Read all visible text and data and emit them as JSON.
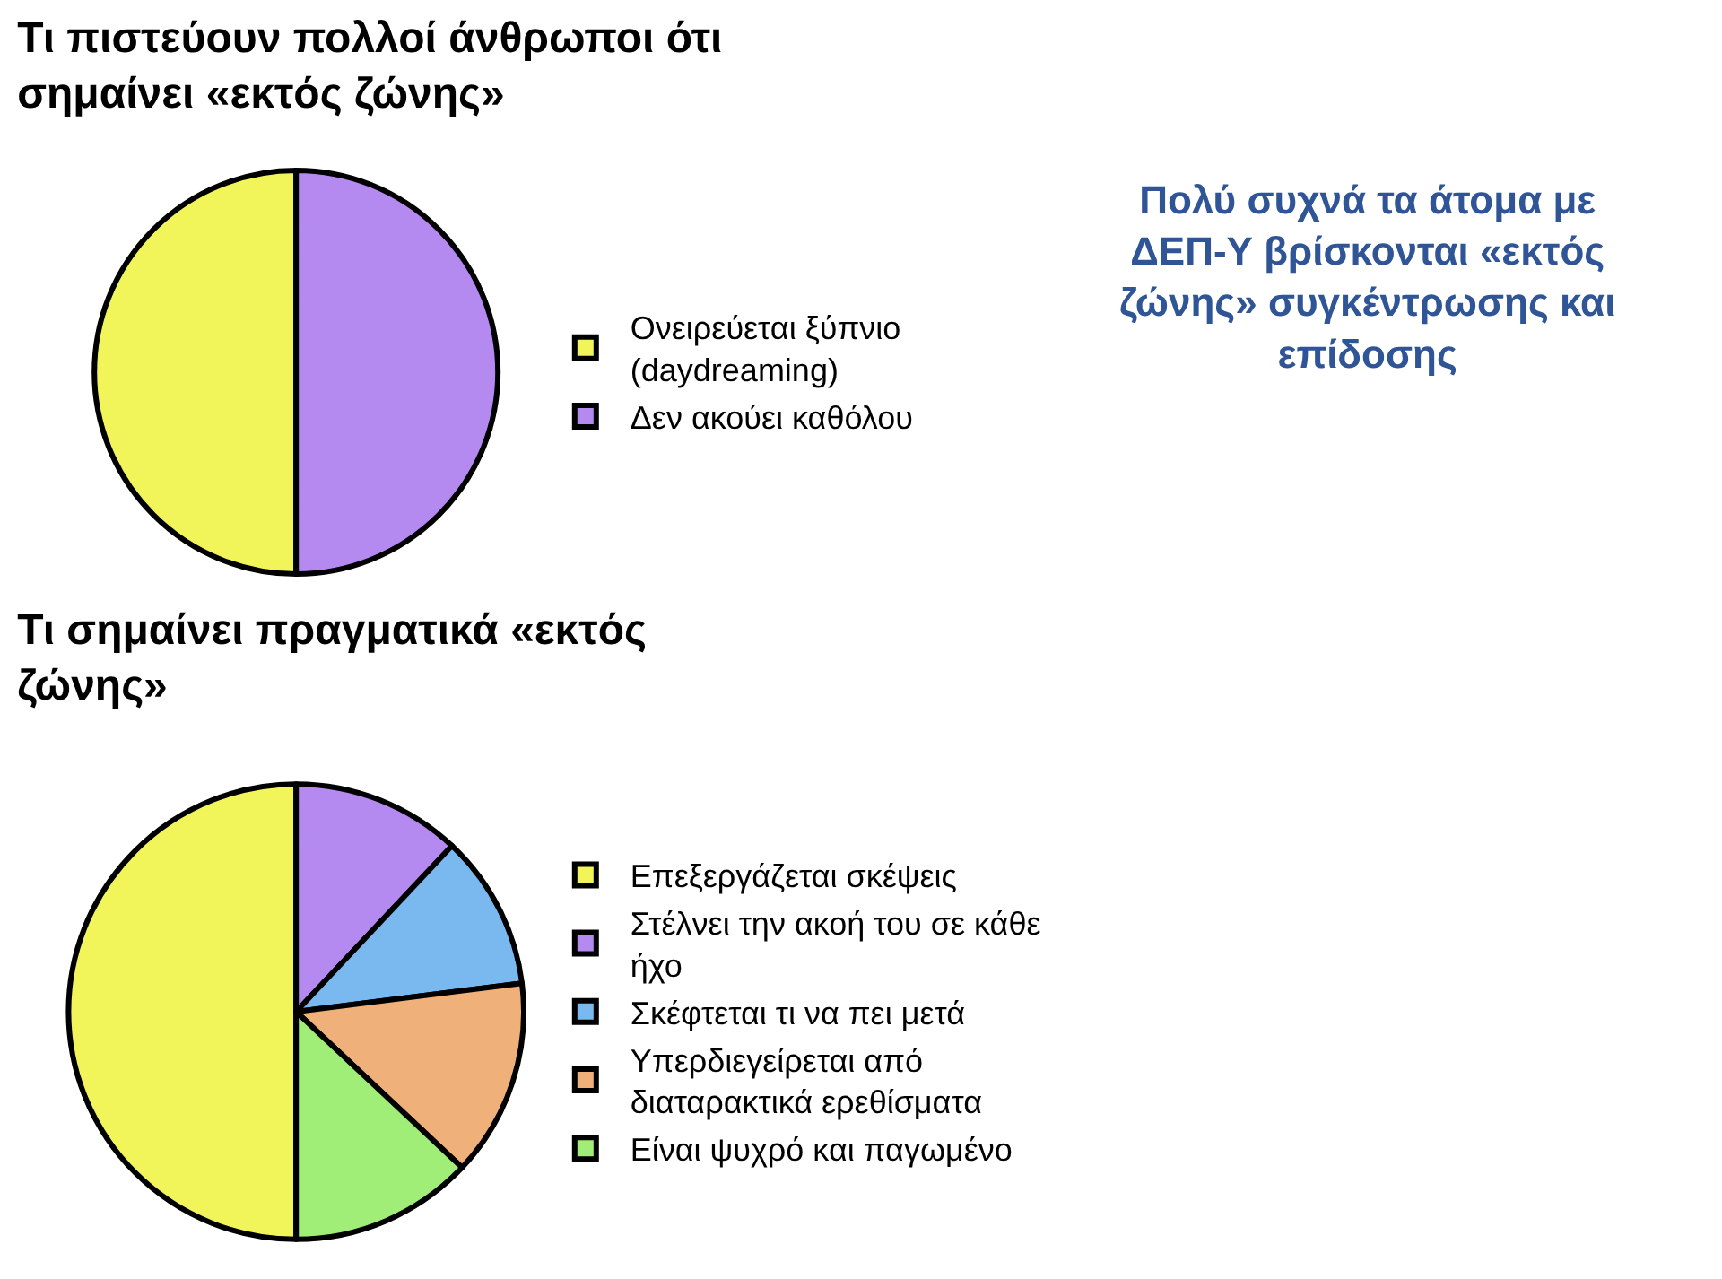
{
  "chart_data": [
    {
      "type": "pie",
      "title": "Τι πιστεύουν πολλοί άνθρωποι ότι σημαίνει «εκτός ζώνης»",
      "categories": [
        "Ονειρεύεται ξύπνιο (daydreaming)",
        "Δεν ακούει καθόλου"
      ],
      "values": [
        50,
        50
      ],
      "colors": [
        "#f2f55a",
        "#b58af0"
      ],
      "legend": "right",
      "annotations": [
        "Πολύ συχνά τα άτομα με ΔΕΠ-Υ βρίσκονται «εκτός ζώνης» συγκέντρωσης και επίδοσης"
      ]
    },
    {
      "type": "pie",
      "title": "Τι σημαίνει πραγματικά «εκτός ζώνης»",
      "categories": [
        "Επεξεργάζεται σκέψεις",
        "Στέλνει την ακοή του σε κάθε ήχο",
        "Σκέφτεται τι να πει μετά",
        "Υπερδιεγείρεται από διαταρακτικά ερεθίσματα",
        "Είναι ψυχρό και παγωμένο"
      ],
      "values": [
        50,
        12,
        11,
        14,
        13
      ],
      "colors": [
        "#f2f55a",
        "#b58af0",
        "#7ab8f0",
        "#f0b07a",
        "#a0ee78"
      ],
      "legend": "right"
    }
  ]
}
